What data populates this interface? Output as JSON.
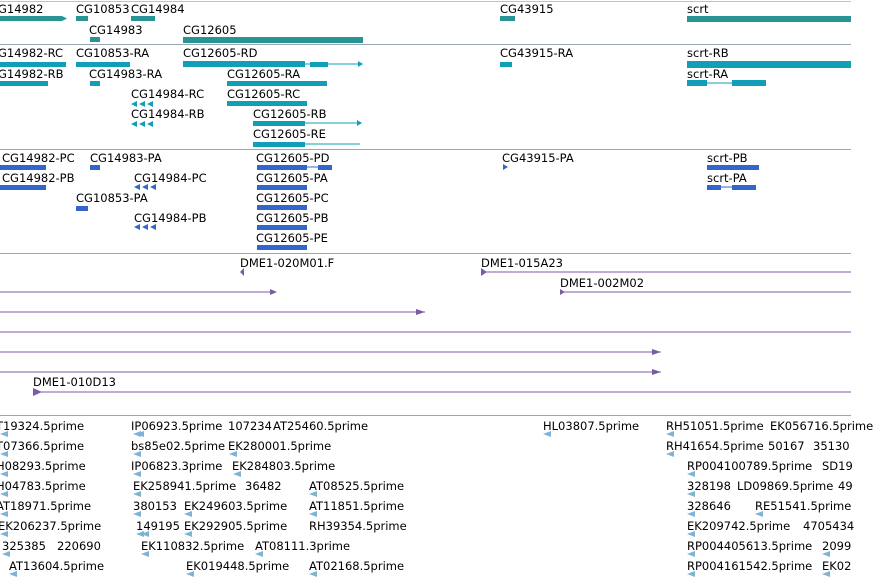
{
  "colors": {
    "gene": "#2a9494",
    "transcript": "#119fb8",
    "cds": "#3366cc",
    "clone": "#7b5aa8",
    "est": "#7fb3d5",
    "divider": "#9aa7ae"
  },
  "tracks": {
    "genes": {
      "labels": [
        "G14982",
        "CG10853",
        "CG14984",
        "CG14983",
        "CG12605",
        "CG43915",
        "scrt"
      ]
    },
    "transcripts": {
      "labels": [
        "G14982-RC",
        "CG10853-RA",
        "CG12605-RD",
        "CG43915-RA",
        "scrt-RB",
        "G14982-RB",
        "CG14983-RA",
        "CG12605-RA",
        "scrt-RA",
        "CG14984-RC",
        "CG12605-RC",
        "CG14984-RB",
        "CG12605-RB",
        "CG12605-RE"
      ]
    },
    "cds": {
      "labels": [
        "CG14982-PC",
        "CG14983-PA",
        "CG12605-PD",
        "CG43915-PA",
        "scrt-PB",
        "CG14982-PB",
        "CG14984-PC",
        "CG12605-PA",
        "scrt-PA",
        "CG10853-PA",
        "CG12605-PC",
        "CG14984-PB",
        "CG12605-PB",
        "CG12605-PE"
      ]
    },
    "clones": {
      "labels": [
        "DME1-020M01.F",
        "DME1-015A23",
        "DME1-002M02",
        "DME1-010D13"
      ]
    },
    "ests": {
      "labels": [
        "T19324.5prime",
        "IP06923.5prime",
        "107234",
        "AT25460.5prime",
        "HL03807.5prime",
        "RH51051.5prime",
        "EK056716.5prime",
        "T07366.5prime",
        "bs85e02.5prime",
        "EK280001.5prime",
        "RH41654.5prime",
        "50167",
        "35130",
        "H08293.5prime",
        "IP06823.3prime",
        "EK284803.5prime",
        "RP004100789.5prime",
        "SD19",
        "H04783.5prime",
        "EK258941.5prime",
        "36482",
        "AT08525.5prime",
        "328198",
        "LD09869.5prime",
        "49",
        "AT18971.5prime",
        "380153",
        "EK249603.5prime",
        "AT11851.5prime",
        "328646",
        "RE51541.5prime",
        "EK206237.5prime",
        "149195",
        "EK292905.5prime",
        "RH39354.5prime",
        "EK209742.5prime",
        "4705434",
        "325385",
        "220690",
        "EK110832.5prime",
        "AT08111.3prime",
        "RP004405613.5prime",
        "2099",
        "AT13604.5prime",
        "EK019448.5prime",
        "AT02168.5prime",
        "RP004161542.5prime",
        "EK02"
      ]
    }
  }
}
